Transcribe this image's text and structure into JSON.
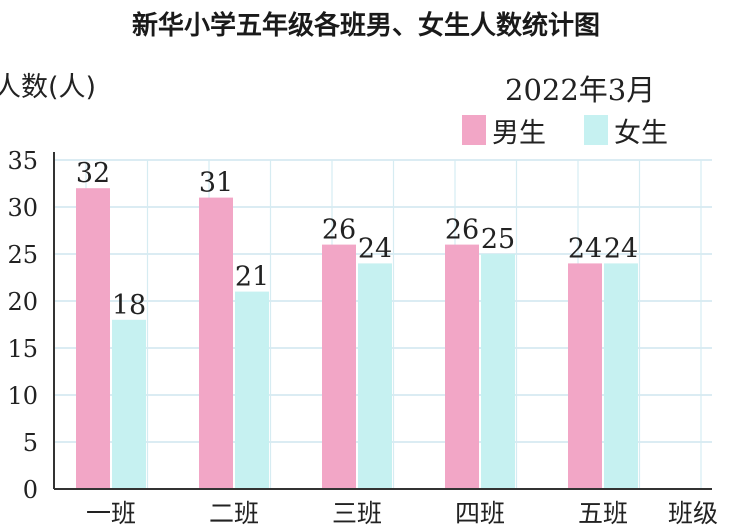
{
  "chart_data": {
    "type": "bar",
    "title": "新华小学五年级各班男、女生人数统计图",
    "ylabel": "人数(人)",
    "xlabel": "班级",
    "date": "2022年3月",
    "categories": [
      "一班",
      "二班",
      "三班",
      "四班",
      "五班"
    ],
    "series": [
      {
        "name": "男生",
        "values": [
          32,
          31,
          26,
          26,
          24
        ],
        "color": "#f2a6c6"
      },
      {
        "name": "女生",
        "values": [
          18,
          21,
          24,
          25,
          24
        ],
        "color": "#c6f1f1"
      }
    ],
    "ylim": [
      0,
      35
    ],
    "yticks": [
      0,
      5,
      10,
      15,
      20,
      25,
      30,
      35
    ],
    "grid": true,
    "legend": "top-right",
    "data_labels": true
  }
}
